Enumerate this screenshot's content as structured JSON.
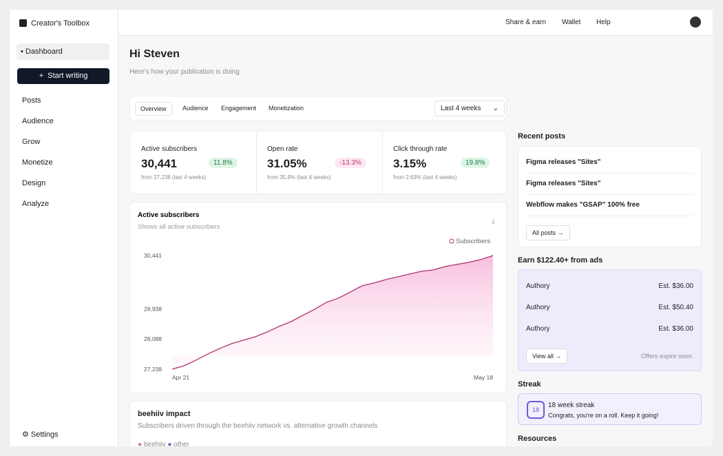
{
  "sidebar": {
    "workspace": "Creator's Toolbox",
    "dashboard": "Dashboard",
    "start_writing": "Start writing",
    "nav": [
      "Posts",
      "Audience",
      "Grow",
      "Monetize",
      "Design",
      "Analyze"
    ],
    "settings": "Settings"
  },
  "topbar": {
    "links": [
      "Share & earn",
      "Wallet",
      "Help"
    ]
  },
  "header": {
    "greeting": "Hi Steven",
    "subtitle": "Here's how your publication is doing"
  },
  "tabs": {
    "items": [
      "Overview",
      "Audience",
      "Engagement",
      "Monetization"
    ],
    "range": "Last 4 weeks"
  },
  "stats": [
    {
      "label": "Active subscribers",
      "value": "30,441",
      "change": "11.8%",
      "from": "from 27,238 (last 4 weeks)"
    },
    {
      "label": "Open rate",
      "value": "31.05%",
      "change": "-13.3%",
      "from": "from 35.8% (last 4 weeks)"
    },
    {
      "label": "Click through rate",
      "value": "3.15%",
      "change": "19.8%",
      "from": "from 2.63% (last 4 weeks)"
    }
  ],
  "chart_data": {
    "type": "area",
    "title": "Active subscribers",
    "subtitle": "Shows all active subscribers",
    "categories": [
      "Apr 21",
      null,
      null,
      null,
      null,
      null,
      null,
      null,
      null,
      null,
      null,
      null,
      null,
      null,
      null,
      null,
      null,
      null,
      null,
      null,
      null,
      null,
      null,
      null,
      null,
      null,
      null,
      "May 18"
    ],
    "series": [
      {
        "name": "Subscribers",
        "color": "#b0306e",
        "values": [
          27238,
          27335,
          27491,
          27666,
          27822,
          27958,
          28055,
          28152,
          28288,
          28444,
          28580,
          28755,
          28930,
          29125,
          29241,
          29416,
          29591,
          29669,
          29767,
          29844,
          29922,
          30000,
          30039,
          30136,
          30194,
          30253,
          30331,
          30441
        ]
      }
    ],
    "ylim": [
      27238,
      30441
    ],
    "yticks": [
      {
        "value": 27238,
        "label": "27,238"
      },
      {
        "value": 28088,
        "label": "28,088"
      },
      {
        "value": 28938,
        "label": "28,938"
      },
      {
        "value": 30441,
        "label": "30,441"
      }
    ]
  },
  "recent_posts": {
    "title": "Recent posts",
    "items": [
      "Figma releases \"Sites\"",
      "Figma releases \"Sites\"",
      "Webflow makes \"GSAP\" 100% free"
    ],
    "button": "All posts"
  },
  "ads": {
    "title": "Earn $122.40+ from ads",
    "rows": [
      {
        "name": "Authory",
        "est": "Est. $36.00"
      },
      {
        "name": "Authory",
        "est": "Est. $50.40"
      },
      {
        "name": "Authory",
        "est": "Est. $36.00"
      }
    ],
    "button": "View all",
    "note": "Offers expire soon."
  },
  "streak": {
    "title": "Streak",
    "badge": "18",
    "heading": "18 week streak",
    "text": "Congrats, you're on a roll. Keep it going!"
  },
  "resources": {
    "title": "Resources"
  },
  "impact": {
    "title": "beehiiv impact",
    "subtitle": "Subscribers driven through the beehiiv network vs. alternative growth channels",
    "legend": [
      "beehiiv",
      "other"
    ]
  }
}
